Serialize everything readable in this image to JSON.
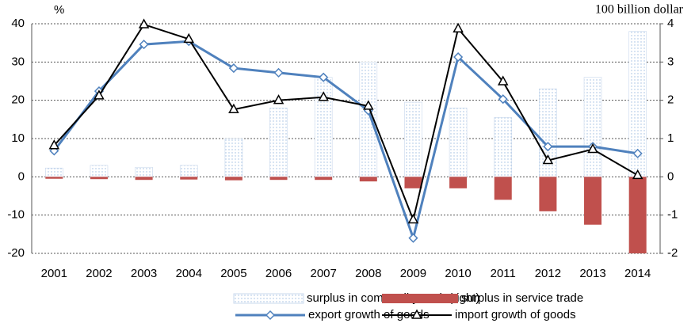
{
  "chart_data": {
    "type": "combo",
    "y_label": "%",
    "y2_label": "100 billion dollar",
    "categories": [
      "2001",
      "2002",
      "2003",
      "2004",
      "2005",
      "2006",
      "2007",
      "2008",
      "2009",
      "2010",
      "2011",
      "2012",
      "2013",
      "2014"
    ],
    "ylim": [
      -20,
      40
    ],
    "yticks": [
      -20,
      -10,
      0,
      10,
      20,
      30,
      40
    ],
    "y2lim": [
      -2,
      4
    ],
    "y2ticks": [
      -2,
      -1,
      0,
      1,
      2,
      3,
      4
    ],
    "grid": true,
    "series": [
      {
        "name": "surplus in commodity trade(right)",
        "type": "bar",
        "axis": "y2",
        "color": "#9dbbe0",
        "pattern": "dots",
        "values": [
          0.23,
          0.3,
          0.25,
          0.3,
          1.0,
          1.8,
          2.6,
          3.0,
          1.95,
          1.8,
          1.55,
          2.3,
          2.6,
          3.8
        ]
      },
      {
        "name": "surplus in service trade",
        "type": "bar",
        "axis": "y2",
        "color": "#c0504d",
        "values": [
          -0.05,
          -0.06,
          -0.08,
          -0.07,
          -0.09,
          -0.08,
          -0.08,
          -0.12,
          -0.3,
          -0.3,
          -0.6,
          -0.9,
          -1.25,
          -2.0
        ]
      },
      {
        "name": "export growth of goods",
        "type": "line",
        "color": "#4f81bd",
        "marker": "diamond",
        "values": [
          6.8,
          22.4,
          34.6,
          35.4,
          28.4,
          27.2,
          26.0,
          17.3,
          -16.0,
          31.3,
          20.3,
          7.9,
          7.9,
          6.1
        ]
      },
      {
        "name": "import growth of goods",
        "type": "line",
        "color": "#000000",
        "marker": "triangle",
        "values": [
          8.2,
          21.2,
          39.8,
          36.0,
          17.6,
          20.0,
          20.8,
          18.5,
          -11.2,
          38.7,
          24.9,
          4.3,
          7.2,
          0.4
        ]
      }
    ]
  }
}
